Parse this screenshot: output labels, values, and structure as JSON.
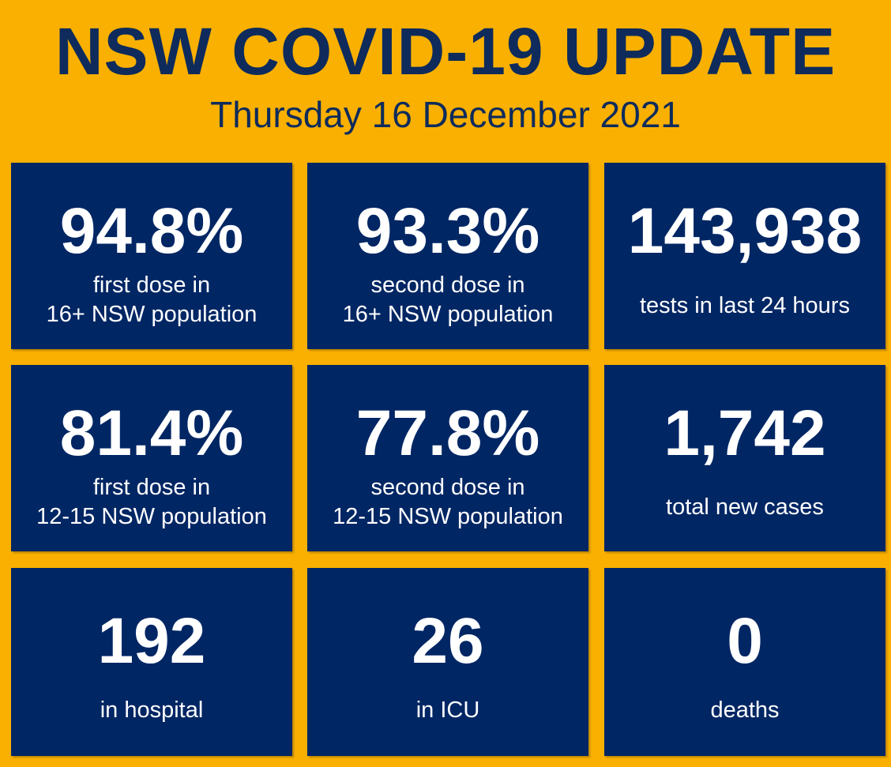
{
  "header": {
    "title": "NSW COVID-19 UPDATE",
    "date": "Thursday 16 December 2021"
  },
  "colors": {
    "background": "#F9B000",
    "tile": "#002664",
    "title_text": "#0E2B5C",
    "tile_text": "#FFFFFF"
  },
  "tiles": [
    {
      "value": "94.8%",
      "label_line1": "first dose in",
      "label_line2": "16+ NSW population"
    },
    {
      "value": "93.3%",
      "label_line1": "second dose in",
      "label_line2": "16+ NSW population"
    },
    {
      "value": "143,938",
      "label_line1": "tests in last 24 hours"
    },
    {
      "value": "81.4%",
      "label_line1": "first dose in",
      "label_line2": "12-15 NSW population"
    },
    {
      "value": "77.8%",
      "label_line1": "second dose in",
      "label_line2": "12-15 NSW population"
    },
    {
      "value": "1,742",
      "label_line1": "total new cases"
    },
    {
      "value": "192",
      "label_line1": "in hospital"
    },
    {
      "value": "26",
      "label_line1": "in ICU"
    },
    {
      "value": "0",
      "label_line1": "deaths"
    }
  ]
}
